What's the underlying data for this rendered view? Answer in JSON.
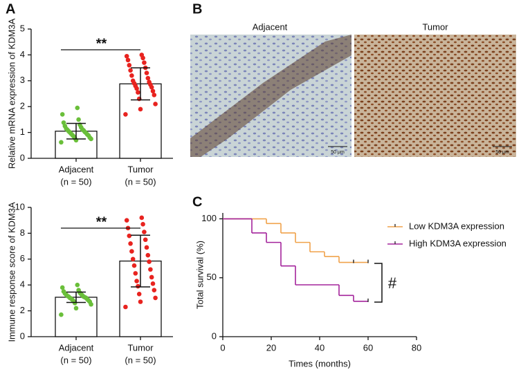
{
  "panel_labels": [
    "A",
    "B",
    "C"
  ],
  "images": {
    "titles": [
      "Adjacent",
      "Tumor"
    ],
    "scale_bar": "50 μm"
  },
  "chart_data": [
    {
      "type": "bar",
      "ylabel": "Relative mRNA expression of KDM3A",
      "significance": "**",
      "categories": [
        "Adjacent",
        "Tumor"
      ],
      "n_labels": [
        "(n = 50)",
        "(n = 50)"
      ],
      "values": [
        1.05,
        2.88
      ],
      "errors": [
        0.3,
        0.62
      ],
      "color": "#ffffff",
      "point_colors": [
        "#6abf3a",
        "#e8231f"
      ],
      "points": [
        [
          0.62,
          0.7,
          0.75,
          0.78,
          0.8,
          0.85,
          0.88,
          0.9,
          0.92,
          0.95,
          0.98,
          1.0,
          1.02,
          1.05,
          1.08,
          1.1,
          1.12,
          1.15,
          1.2,
          1.25,
          1.3,
          1.38,
          1.5,
          1.7,
          1.95
        ],
        [
          1.7,
          1.9,
          2.1,
          2.3,
          2.45,
          2.55,
          2.6,
          2.7,
          2.75,
          2.8,
          2.85,
          2.9,
          2.95,
          3.0,
          3.1,
          3.2,
          3.3,
          3.4,
          3.5,
          3.6,
          3.7,
          3.8,
          3.88,
          3.95,
          4.0
        ]
      ],
      "ylim": [
        0,
        5
      ],
      "yticks": [
        0,
        1,
        2,
        3,
        4,
        5
      ]
    },
    {
      "type": "bar",
      "ylabel": "Immune response score of KDM3A",
      "significance": "**",
      "categories": [
        "Adjacent",
        "Tumor"
      ],
      "n_labels": [
        "(n = 50)",
        "(n = 50)"
      ],
      "values": [
        3.05,
        5.85
      ],
      "errors": [
        0.4,
        2.0
      ],
      "color": "#ffffff",
      "point_colors": [
        "#6abf3a",
        "#e8231f"
      ],
      "points": [
        [
          1.7,
          2.2,
          2.5,
          2.6,
          2.7,
          2.75,
          2.8,
          2.85,
          2.9,
          2.95,
          3.0,
          3.0,
          3.05,
          3.1,
          3.1,
          3.15,
          3.2,
          3.25,
          3.3,
          3.35,
          3.4,
          3.5,
          3.6,
          3.8,
          4.0
        ],
        [
          2.3,
          2.7,
          3.0,
          3.3,
          3.6,
          3.9,
          4.1,
          4.3,
          4.6,
          4.9,
          5.2,
          5.5,
          5.8,
          6.0,
          6.3,
          6.6,
          6.9,
          7.2,
          7.5,
          7.8,
          8.1,
          8.4,
          8.7,
          9.0,
          9.2
        ]
      ],
      "ylim": [
        0,
        10
      ],
      "yticks": [
        0,
        2,
        4,
        6,
        8,
        10
      ]
    },
    {
      "type": "line",
      "xlabel": "Times (months)",
      "ylabel": "Total survival (%)",
      "annotation": "#",
      "xlim": [
        0,
        80
      ],
      "xticks": [
        0,
        20,
        40,
        60,
        80
      ],
      "ylim": [
        0,
        105
      ],
      "yticks": [
        0,
        50,
        100
      ],
      "series": [
        {
          "name": "Low  KDM3A expression",
          "color": "#f0a24a",
          "x": [
            0,
            18,
            24,
            30,
            36,
            42,
            48,
            60
          ],
          "values": [
            100,
            96,
            88,
            80,
            72,
            68,
            63,
            63
          ],
          "censored": [
            54,
            60
          ]
        },
        {
          "name": "High  KDM3A expression",
          "color": "#a3239b",
          "x": [
            0,
            12,
            18,
            24,
            30,
            48,
            54,
            60
          ],
          "values": [
            100,
            88,
            80,
            60,
            44,
            35,
            30,
            30
          ],
          "censored": [
            60
          ]
        }
      ]
    }
  ]
}
